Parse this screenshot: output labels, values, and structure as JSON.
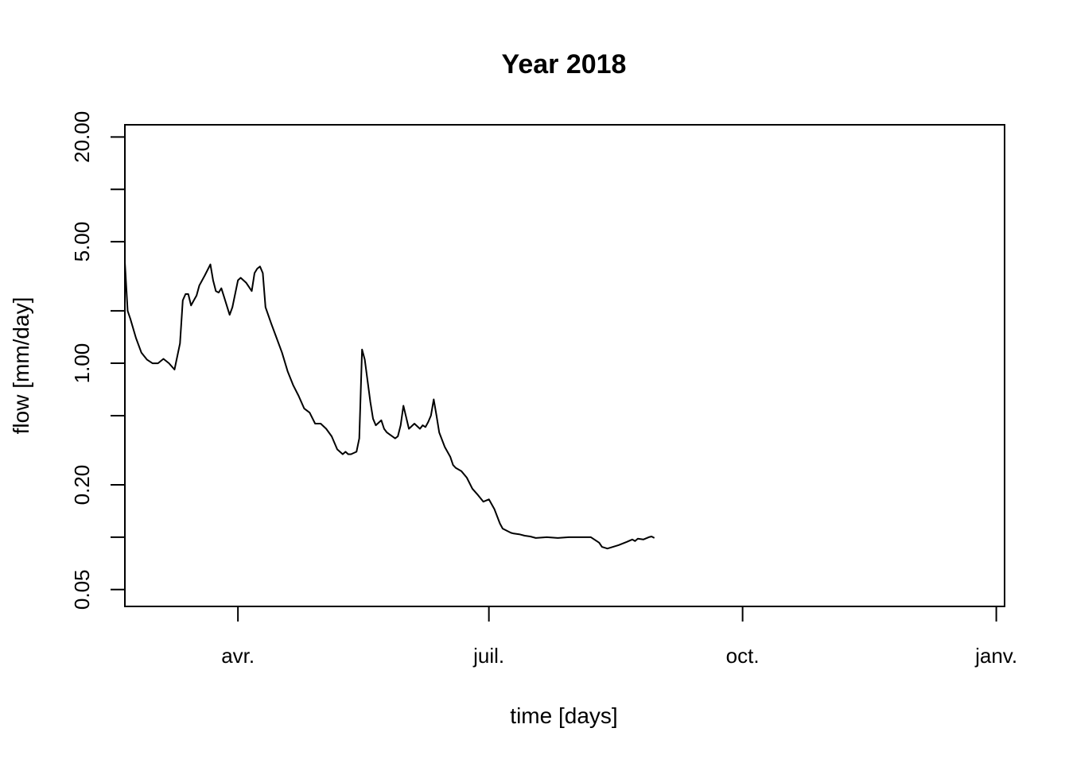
{
  "chart_data": {
    "type": "line",
    "title": "Year 2018",
    "xlabel": "time [days]",
    "ylabel": "flow [mm/day]",
    "y_scale": "log",
    "ylim": [
      0.04,
      23.5
    ],
    "xlim": [
      "2018-02-19",
      "2019-01-04"
    ],
    "x_ticks": [
      {
        "date": "2018-04-01",
        "label": "avr."
      },
      {
        "date": "2018-07-01",
        "label": "juil."
      },
      {
        "date": "2018-10-01",
        "label": "oct."
      },
      {
        "date": "2019-01-01",
        "label": "janv."
      }
    ],
    "y_ticks": [
      {
        "value": 20,
        "label": "20.00"
      },
      {
        "value": 10,
        "label": ""
      },
      {
        "value": 5,
        "label": "5.00"
      },
      {
        "value": 2,
        "label": ""
      },
      {
        "value": 1,
        "label": "1.00"
      },
      {
        "value": 0.5,
        "label": ""
      },
      {
        "value": 0.2,
        "label": "0.20"
      },
      {
        "value": 0.1,
        "label": ""
      },
      {
        "value": 0.05,
        "label": "0.05"
      }
    ],
    "grid": false,
    "color": "#000000",
    "series": [
      {
        "x": [
          "2018-02-19",
          "2018-02-20",
          "2018-02-21",
          "2018-02-23",
          "2018-02-25",
          "2018-02-27",
          "2018-03-01",
          "2018-03-03",
          "2018-03-05",
          "2018-03-07",
          "2018-03-09",
          "2018-03-11",
          "2018-03-12",
          "2018-03-13",
          "2018-03-14",
          "2018-03-15",
          "2018-03-16",
          "2018-03-17",
          "2018-03-18",
          "2018-03-20",
          "2018-03-22",
          "2018-03-23",
          "2018-03-24",
          "2018-03-25",
          "2018-03-26",
          "2018-03-27",
          "2018-03-29",
          "2018-03-30",
          "2018-04-01",
          "2018-04-02",
          "2018-04-04",
          "2018-04-06",
          "2018-04-07",
          "2018-04-08",
          "2018-04-09",
          "2018-04-10",
          "2018-04-11",
          "2018-04-13",
          "2018-04-15",
          "2018-04-17",
          "2018-04-19",
          "2018-04-21",
          "2018-04-23",
          "2018-04-25",
          "2018-04-27",
          "2018-04-29",
          "2018-05-01",
          "2018-05-03",
          "2018-05-05",
          "2018-05-07",
          "2018-05-09",
          "2018-05-10",
          "2018-05-11",
          "2018-05-12",
          "2018-05-14",
          "2018-05-15",
          "2018-05-16",
          "2018-05-17",
          "2018-05-19",
          "2018-05-20",
          "2018-05-21",
          "2018-05-23",
          "2018-05-24",
          "2018-05-25",
          "2018-05-26",
          "2018-05-28",
          "2018-05-29",
          "2018-05-30",
          "2018-05-31",
          "2018-06-02",
          "2018-06-04",
          "2018-06-06",
          "2018-06-07",
          "2018-06-08",
          "2018-06-09",
          "2018-06-10",
          "2018-06-11",
          "2018-06-12",
          "2018-06-13",
          "2018-06-15",
          "2018-06-17",
          "2018-06-18",
          "2018-06-19",
          "2018-06-21",
          "2018-06-23",
          "2018-06-25",
          "2018-06-27",
          "2018-06-29",
          "2018-07-01",
          "2018-07-03",
          "2018-07-05",
          "2018-07-06",
          "2018-07-08",
          "2018-07-09",
          "2018-07-10",
          "2018-07-12",
          "2018-07-14",
          "2018-07-16",
          "2018-07-18",
          "2018-07-22",
          "2018-07-26",
          "2018-07-30",
          "2018-08-03",
          "2018-08-07",
          "2018-08-10",
          "2018-08-11",
          "2018-08-13",
          "2018-08-17",
          "2018-08-20",
          "2018-08-22",
          "2018-08-23",
          "2018-08-24",
          "2018-08-26",
          "2018-08-28",
          "2018-08-29",
          "2018-08-30"
        ],
        "values": [
          3.8,
          2.0,
          1.8,
          1.4,
          1.15,
          1.05,
          1.0,
          1.0,
          1.06,
          1.0,
          0.92,
          1.3,
          2.3,
          2.5,
          2.5,
          2.15,
          2.3,
          2.45,
          2.8,
          3.2,
          3.7,
          3.0,
          2.6,
          2.55,
          2.7,
          2.4,
          1.9,
          2.1,
          3.0,
          3.1,
          2.9,
          2.6,
          3.3,
          3.5,
          3.6,
          3.3,
          2.1,
          1.7,
          1.4,
          1.15,
          0.9,
          0.75,
          0.65,
          0.55,
          0.52,
          0.45,
          0.45,
          0.42,
          0.38,
          0.32,
          0.3,
          0.31,
          0.3,
          0.3,
          0.31,
          0.37,
          1.2,
          1.05,
          0.6,
          0.48,
          0.44,
          0.47,
          0.42,
          0.4,
          0.39,
          0.37,
          0.38,
          0.44,
          0.57,
          0.42,
          0.45,
          0.42,
          0.44,
          0.43,
          0.46,
          0.5,
          0.62,
          0.5,
          0.4,
          0.33,
          0.29,
          0.26,
          0.25,
          0.24,
          0.22,
          0.19,
          0.175,
          0.16,
          0.165,
          0.145,
          0.12,
          0.112,
          0.108,
          0.106,
          0.105,
          0.104,
          0.102,
          0.101,
          0.099,
          0.1,
          0.099,
          0.1,
          0.1,
          0.1,
          0.093,
          0.088,
          0.086,
          0.09,
          0.094,
          0.097,
          0.095,
          0.098,
          0.097,
          0.1,
          0.101,
          0.099
        ]
      }
    ]
  }
}
